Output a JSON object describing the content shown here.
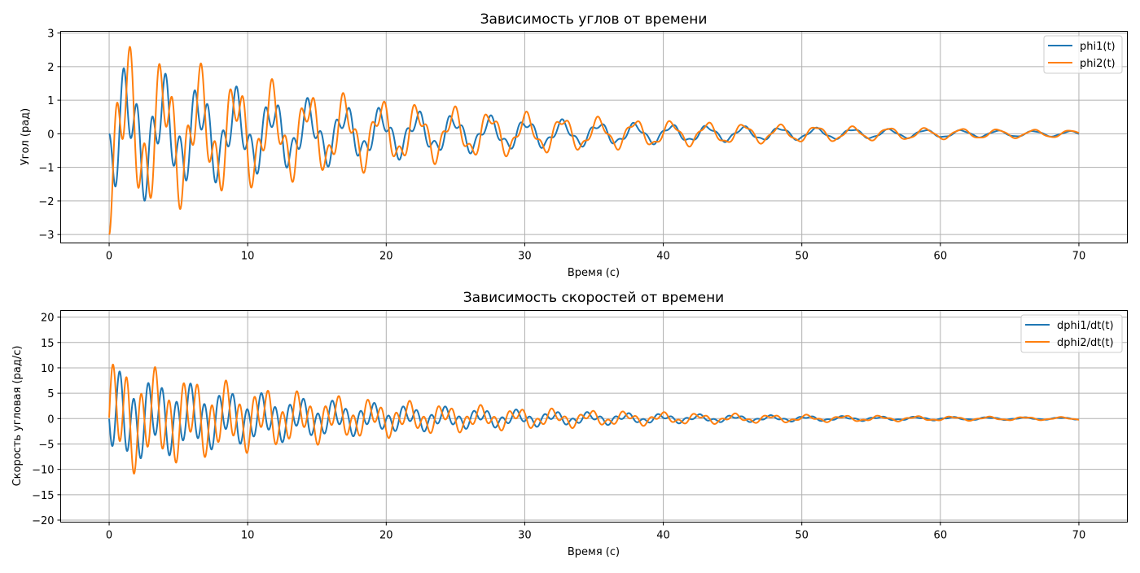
{
  "chart_data": [
    {
      "type": "line",
      "title": "Зависимость углов от времени",
      "xlabel": "Время (с)",
      "ylabel": "Угол (рад)",
      "xlim": [
        -3.5,
        73.5
      ],
      "ylim": [
        -3.25,
        3.05
      ],
      "xticks": [
        0,
        10,
        20,
        30,
        40,
        50,
        60,
        70
      ],
      "yticks": [
        -3,
        -2,
        -1,
        0,
        1,
        2,
        3
      ],
      "xtick_labels": [
        "0",
        "10",
        "20",
        "30",
        "40",
        "50",
        "60",
        "70"
      ],
      "ytick_labels": [
        "−3",
        "−2",
        "−1",
        "0",
        "1",
        "2",
        "3"
      ],
      "grid": true,
      "legend_position": "top-right",
      "series": [
        {
          "name": "phi1(t)",
          "color": "#1f77b4",
          "t_max": 70,
          "components": [
            {
              "amplitude": -1.15,
              "frequency_rad_s": 2.4,
              "decay": 0.04
            },
            {
              "amplitude": 1.15,
              "frequency_rad_s": 6.15,
              "decay": 0.068
            }
          ]
        },
        {
          "name": "phi2(t)",
          "color": "#ff7f0e",
          "t_max": 70,
          "components": [
            {
              "amplitude": -1.62,
              "frequency_rad_s": 2.4,
              "decay": 0.04
            },
            {
              "amplitude": -1.38,
              "frequency_rad_s": 6.15,
              "decay": 0.068
            }
          ]
        }
      ]
    },
    {
      "type": "line",
      "title": "Зависимость скоростей от времени",
      "xlabel": "Время (с)",
      "ylabel": "Скорость угловая (рад/с)",
      "xlim": [
        -3.5,
        73.5
      ],
      "ylim": [
        -20.4,
        21.3
      ],
      "xticks": [
        0,
        10,
        20,
        30,
        40,
        50,
        60,
        70
      ],
      "yticks": [
        -20,
        -15,
        -10,
        -5,
        0,
        5,
        10,
        15,
        20
      ],
      "xtick_labels": [
        "0",
        "10",
        "20",
        "30",
        "40",
        "50",
        "60",
        "70"
      ],
      "ytick_labels": [
        "−20",
        "−15",
        "−10",
        "−5",
        "0",
        "5",
        "10",
        "15",
        "20"
      ],
      "grid": true,
      "legend_position": "top-right",
      "series": [
        {
          "name": "dphi1/dt(t)",
          "color": "#1f77b4",
          "derivative_of": 0
        },
        {
          "name": "dphi2/dt(t)",
          "color": "#ff7f0e",
          "derivative_of": 1
        }
      ]
    }
  ]
}
